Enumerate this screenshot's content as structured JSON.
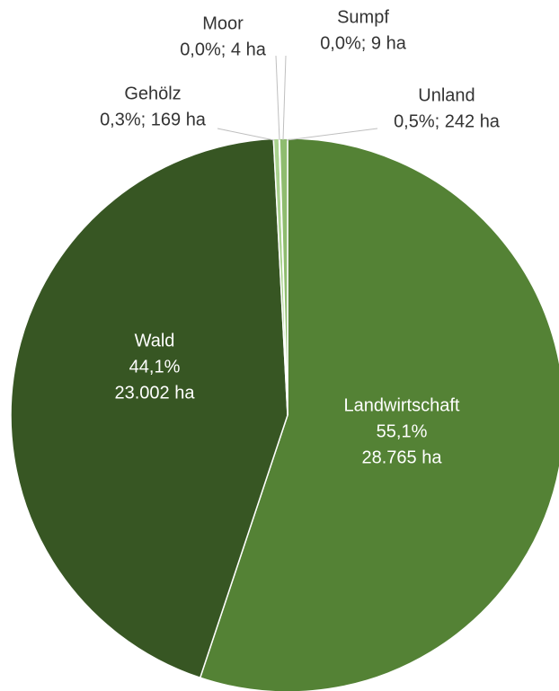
{
  "chart_data": {
    "type": "pie",
    "categories": [
      "Landwirtschaft",
      "Wald",
      "Gehölz",
      "Moor",
      "Sumpf",
      "Unland"
    ],
    "values": [
      28765,
      23002,
      169,
      4,
      9,
      242
    ],
    "value_labels": [
      [
        "55,1%",
        "28.765 ha"
      ],
      [
        "44,1%",
        "23.002 ha"
      ],
      [
        "0,3%; 169 ha"
      ],
      [
        "0,0%; 4 ha"
      ],
      [
        "0,0%; 9 ha"
      ],
      [
        "0,5%; 242 ha"
      ]
    ],
    "colors": [
      "#548235",
      "#375623",
      "#a9d18e",
      "#c5e0b4",
      "#e2f0d9",
      "#8fbc6f"
    ]
  }
}
